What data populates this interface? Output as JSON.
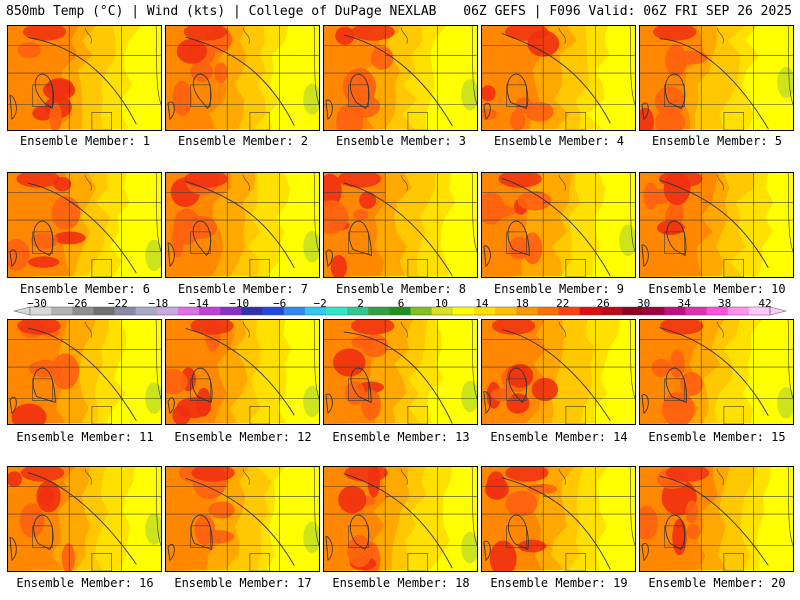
{
  "header": {
    "left": "850mb Temp (°C) | Wind (kts) | College of DuPage NEXLAB",
    "right": "06Z GEFS | F096 Valid: 06Z FRI SEP 26 2025"
  },
  "members": [
    {
      "label": "Ensemble Member: 1",
      "warm": 0.75
    },
    {
      "label": "Ensemble Member: 2",
      "warm": 0.65
    },
    {
      "label": "Ensemble Member: 3",
      "warm": 0.55
    },
    {
      "label": "Ensemble Member: 4",
      "warm": 0.8
    },
    {
      "label": "Ensemble Member: 5",
      "warm": 0.5
    },
    {
      "label": "Ensemble Member: 6",
      "warm": 0.7
    },
    {
      "label": "Ensemble Member: 7",
      "warm": 0.6
    },
    {
      "label": "Ensemble Member: 8",
      "warm": 0.75
    },
    {
      "label": "Ensemble Member: 9",
      "warm": 0.65
    },
    {
      "label": "Ensemble Member: 10",
      "warm": 0.85
    },
    {
      "label": "Ensemble Member: 11",
      "warm": 0.6
    },
    {
      "label": "Ensemble Member: 12",
      "warm": 0.7
    },
    {
      "label": "Ensemble Member: 13",
      "warm": 0.65
    },
    {
      "label": "Ensemble Member: 14",
      "warm": 0.8
    },
    {
      "label": "Ensemble Member: 15",
      "warm": 0.55
    },
    {
      "label": "Ensemble Member: 16",
      "warm": 0.6
    },
    {
      "label": "Ensemble Member: 17",
      "warm": 0.55
    },
    {
      "label": "Ensemble Member: 18",
      "warm": 0.7
    },
    {
      "label": "Ensemble Member: 19",
      "warm": 0.8
    },
    {
      "label": "Ensemble Member: 20",
      "warm": 0.85
    }
  ],
  "colorbar": {
    "ticks": [
      "−30",
      "−26",
      "−22",
      "−18",
      "−14",
      "−10",
      "−6",
      "−2",
      "2",
      "6",
      "10",
      "14",
      "18",
      "22",
      "26",
      "30",
      "34",
      "38",
      "42"
    ],
    "colors": [
      "#d9d9d9",
      "#b4b4b4",
      "#8f8f8f",
      "#707070",
      "#8a8aa8",
      "#a8a8c8",
      "#c8a8e0",
      "#e070e8",
      "#c040d8",
      "#8830c8",
      "#3030b0",
      "#2048e0",
      "#3088f0",
      "#30c8f0",
      "#30e8c8",
      "#30c890",
      "#30a040",
      "#209020",
      "#80c020",
      "#d8e020",
      "#ffff00",
      "#ffe000",
      "#ffc000",
      "#ff9800",
      "#ff7000",
      "#ff4010",
      "#e01010",
      "#c00818",
      "#900020",
      "#a00040",
      "#c01080",
      "#e030b0",
      "#ff50e0",
      "#ff90f0",
      "#ffc8ff"
    ],
    "palette": [
      "#c8e020",
      "#ffff00",
      "#ffe000",
      "#ffc800",
      "#ffa800",
      "#ff8800",
      "#ff6010",
      "#f03010"
    ]
  }
}
